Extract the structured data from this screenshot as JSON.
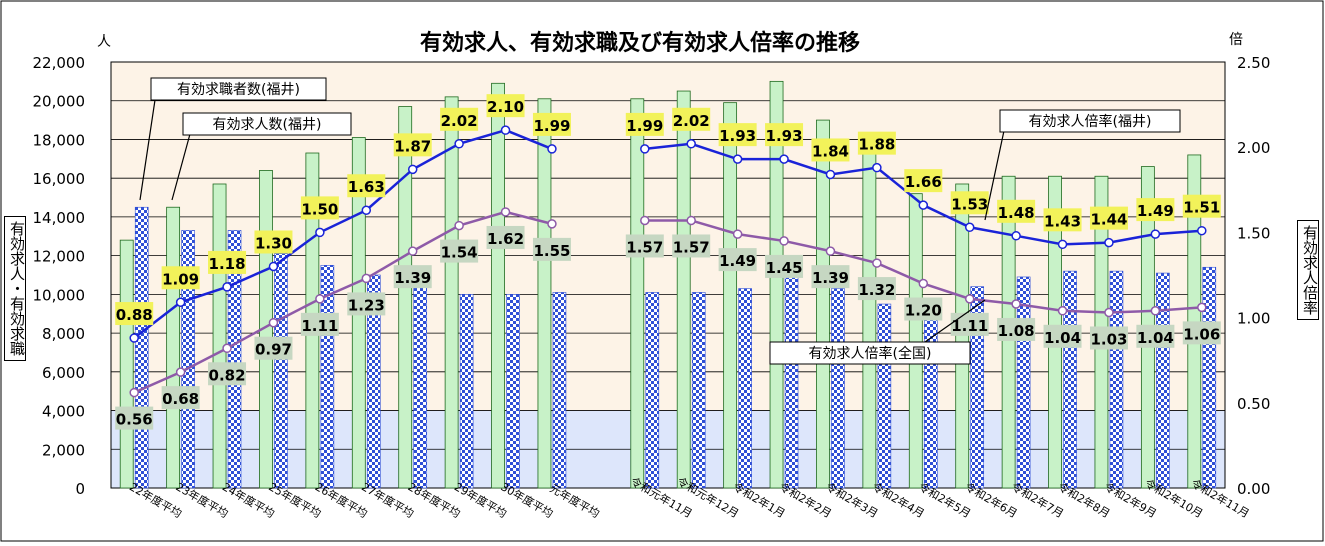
{
  "chart_data": {
    "type": "bar",
    "title": "有効求人、有効求職及び有効求人倍率の推移",
    "y_left_unit": "人",
    "y_right_unit": "倍",
    "y_left_label": "有効求人・有効求職",
    "y_right_label": "有効求人倍率",
    "y_left_lim": [
      0,
      22000
    ],
    "y_right_lim": [
      0,
      2.5
    ],
    "y_left_ticks": [
      "0",
      "2,000",
      "4,000",
      "6,000",
      "8,000",
      "10,000",
      "12,000",
      "14,000",
      "16,000",
      "18,000",
      "20,000",
      "22,000"
    ],
    "y_right_ticks": [
      "0.00",
      "0.50",
      "1.00",
      "1.50",
      "2.00",
      "2.50"
    ],
    "grid": true,
    "categories": [
      "22年度平均",
      "23年度平均",
      "24年度平均",
      "25年度平均",
      "26年度平均",
      "27年度平均",
      "28年度平均",
      "29年度平均",
      "30年度平均",
      "元年度平均",
      "",
      "令和元年11月",
      "令和元年12月",
      "令和2年1月",
      "令和2年2月",
      "令和2年3月",
      "令和2年4月",
      "令和2年5月",
      "令和2年6月",
      "令和2年7月",
      "令和2年8月",
      "令和2年9月",
      "令和2年10月",
      "令和2年11月"
    ],
    "series": [
      {
        "name": "有効求人数(福井)",
        "type": "bar",
        "axis": "left",
        "color": "#c8f2c8",
        "values": [
          12800,
          14500,
          15700,
          16400,
          17300,
          18100,
          19700,
          20200,
          20900,
          20100,
          null,
          20100,
          20500,
          19900,
          21000,
          19000,
          17800,
          15200,
          15700,
          16100,
          16100,
          16100,
          16600,
          17200
        ]
      },
      {
        "name": "有効求職者数(福井)",
        "type": "bar",
        "axis": "left",
        "color": "#2f4fd6",
        "values": [
          14500,
          13300,
          13300,
          12100,
          11500,
          11000,
          10500,
          10000,
          10000,
          10100,
          null,
          10100,
          10100,
          10300,
          10900,
          10300,
          9500,
          9600,
          10400,
          10900,
          11200,
          11200,
          11100,
          11400
        ]
      },
      {
        "name": "有効求人倍率(福井)",
        "type": "line",
        "axis": "right",
        "color": "#1a23d8",
        "values": [
          0.88,
          1.09,
          1.18,
          1.3,
          1.5,
          1.63,
          1.87,
          2.02,
          2.1,
          1.99,
          null,
          1.99,
          2.02,
          1.93,
          1.93,
          1.84,
          1.88,
          1.66,
          1.53,
          1.48,
          1.43,
          1.44,
          1.49,
          1.51
        ],
        "labels": [
          "0.88",
          "1.09",
          "1.18",
          "1.30",
          "1.50",
          "1.63",
          "1.87",
          "2.02",
          "2.10",
          "1.99",
          "",
          "1.99",
          "2.02",
          "1.93",
          "1.93",
          "1.84",
          "1.88",
          "1.66",
          "1.53",
          "1.48",
          "1.43",
          "1.44",
          "1.49",
          "1.51"
        ]
      },
      {
        "name": "有効求人倍率(全国)",
        "type": "line",
        "axis": "right",
        "color": "#8e5aa8",
        "values": [
          0.56,
          0.68,
          0.82,
          0.97,
          1.11,
          1.23,
          1.39,
          1.54,
          1.62,
          1.55,
          null,
          1.57,
          1.57,
          1.49,
          1.45,
          1.39,
          1.32,
          1.2,
          1.11,
          1.08,
          1.04,
          1.03,
          1.04,
          1.06
        ],
        "labels": [
          "0.56",
          "0.68",
          "0.82",
          "0.97",
          "1.11",
          "1.23",
          "1.39",
          "1.54",
          "1.62",
          "1.55",
          "",
          "1.57",
          "1.57",
          "1.49",
          "1.45",
          "1.39",
          "1.32",
          "1.20",
          "1.11",
          "1.08",
          "1.04",
          "1.03",
          "1.04",
          "1.06"
        ]
      }
    ],
    "callouts": [
      "有効求職者数(福井)",
      "有効求人数(福井)",
      "有効求人倍率(福井)",
      "有効求人倍率(全国)"
    ],
    "colors": {
      "plot_top": "#fdf3e7",
      "plot_band": "#dde6fb",
      "frame": "#000000",
      "fukui_label_bg": "#f2f25a",
      "national_label_bg": "#c6d7c2"
    }
  }
}
